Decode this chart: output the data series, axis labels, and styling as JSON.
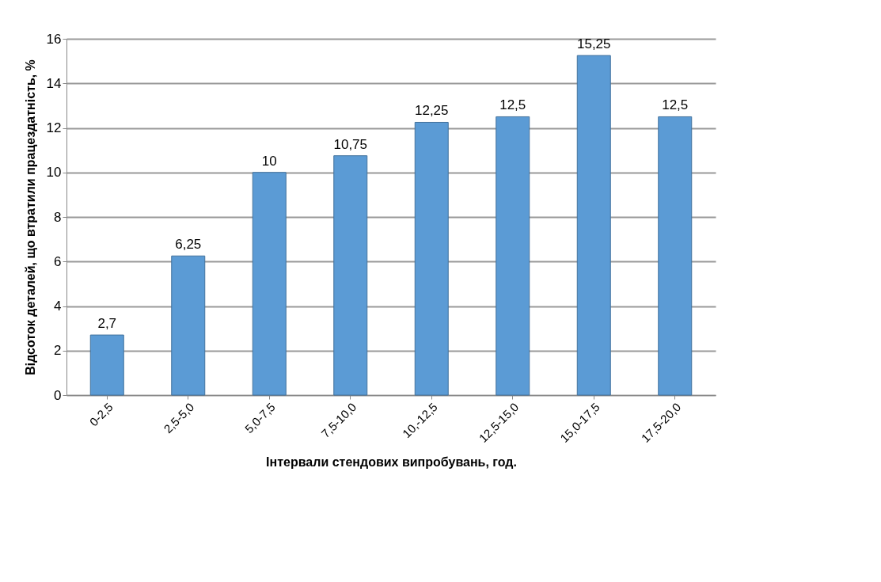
{
  "chart_data": {
    "type": "bar",
    "xlabel": "Інтервали стендових випробувань, год.",
    "ylabel": "Відсоток  деталей, що втратили працездатність, %",
    "categories": [
      "0-2,5",
      "2,5-5,0",
      "5,0-7,5",
      "7,5-10,0",
      "10,-12,5",
      "12,5-15,0",
      "15,0-17,5",
      "17,5-20,0"
    ],
    "values": [
      2.7,
      6.25,
      10,
      10.75,
      12.25,
      12.5,
      15.25,
      12.5
    ],
    "value_labels": [
      "2,7",
      "6,25",
      "10",
      "10,75",
      "12,25",
      "12,5",
      "15,25",
      "12,5"
    ],
    "color": "#5b9bd5",
    "ylim": [
      0,
      16
    ],
    "yticks": [
      0,
      2,
      4,
      6,
      8,
      10,
      12,
      14,
      16
    ],
    "grid": "y"
  }
}
